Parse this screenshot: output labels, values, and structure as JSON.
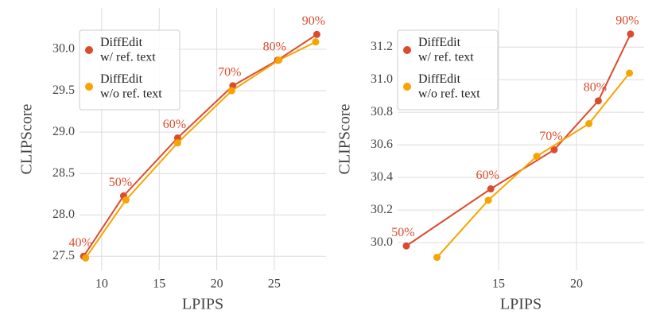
{
  "chart_data": [
    {
      "type": "line",
      "xlabel": "LPIPS",
      "ylabel": "CLIPScore",
      "xlim": [
        8.07,
        29.5
      ],
      "ylim": [
        27.33,
        30.5
      ],
      "xticks": [
        10,
        15,
        20,
        25
      ],
      "yticks": [
        27.5,
        {
          "value": 28,
          "label": "28.0"
        },
        28.5,
        {
          "value": 29,
          "label": "29.0"
        },
        29.5,
        {
          "value": 30,
          "label": "30.0"
        }
      ],
      "grid": true,
      "legend": "upper left",
      "annotations": [
        "40%",
        "50%",
        "60%",
        "70%",
        "80%",
        "90%"
      ],
      "series": [
        {
          "name": "DiffEdit\nw/ ref. text",
          "color": "#dc4b2e",
          "x": [
            8.43,
            11.9,
            16.6,
            21.4,
            25.3,
            28.7
          ],
          "values": [
            27.5,
            28.23,
            28.93,
            29.56,
            29.87,
            30.18
          ]
        },
        {
          "name": "DiffEdit\nw/o ref. text",
          "color": "#f7a400",
          "x": [
            8.6,
            12.1,
            16.6,
            21.3,
            25.4,
            28.6
          ],
          "values": [
            27.48,
            28.18,
            28.87,
            29.5,
            29.87,
            30.09
          ]
        }
      ]
    },
    {
      "type": "line",
      "xlabel": "LPIPS",
      "ylabel": "CLIPScore",
      "xlim": [
        8.52,
        24.34
      ],
      "ylim": [
        29.83,
        31.44
      ],
      "xticks": [
        15,
        20
      ],
      "yticks": [
        {
          "value": 30,
          "label": "30.0"
        },
        30.2,
        30.4,
        30.6,
        30.8,
        {
          "value": 31,
          "label": "31.0"
        },
        31.2
      ],
      "grid": true,
      "legend": "upper left",
      "annotations": [
        "50%",
        "60%",
        "70%",
        "80%",
        "90%"
      ],
      "series": [
        {
          "name": "DiffEdit\nw/ ref. text",
          "color": "#dc4b2e",
          "x": [
            9.08,
            14.5,
            18.57,
            21.4,
            23.47
          ],
          "values": [
            29.98,
            30.33,
            30.57,
            30.87,
            31.28
          ]
        },
        {
          "name": "DiffEdit\nw/o ref. text",
          "color": "#f7a400",
          "x": [
            11.05,
            14.34,
            17.45,
            20.8,
            23.4
          ],
          "values": [
            29.91,
            30.26,
            30.53,
            30.73,
            31.04
          ]
        }
      ]
    }
  ]
}
